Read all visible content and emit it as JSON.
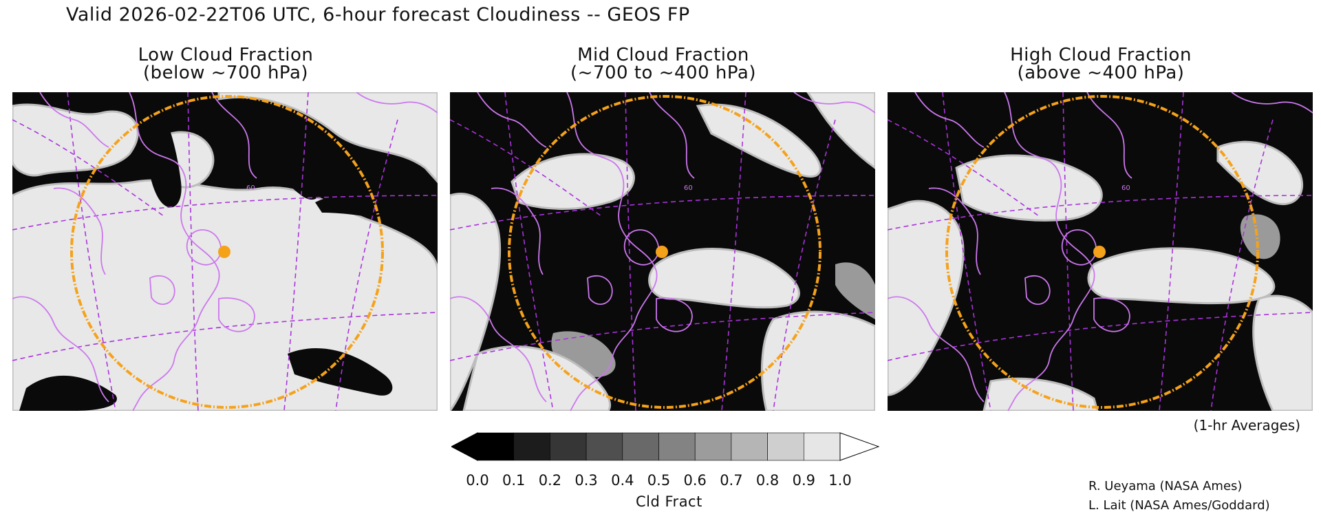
{
  "title": "Valid 2026-02-22T06 UTC, 6-hour forecast Cloudiness -- GEOS FP",
  "panels": [
    {
      "title_line1": "Low Cloud Fraction",
      "title_line2": "(below ~700 hPa)",
      "latitude_label": "60"
    },
    {
      "title_line1": "Mid Cloud Fraction",
      "title_line2": "(~700 to ~400 hPa)",
      "latitude_label": "60"
    },
    {
      "title_line1": "High Cloud Fraction",
      "title_line2": "(above ~400 hPa)",
      "latitude_label": "60"
    }
  ],
  "colorbar": {
    "label": "Cld Fract",
    "ticks": [
      "0.0",
      "0.1",
      "0.2",
      "0.3",
      "0.4",
      "0.5",
      "0.6",
      "0.7",
      "0.8",
      "0.9",
      "1.0"
    ],
    "colors": [
      "#000000",
      "#1c1c1c",
      "#363636",
      "#4f4f4f",
      "#696969",
      "#838383",
      "#9c9c9c",
      "#b5b5b5",
      "#cfcfcf",
      "#e6e6e6"
    ],
    "under_color": "#000000",
    "over_color": "#ffffff"
  },
  "averaging_note": "(1-hr Averages)",
  "credits": [
    "R. Ueyama (NASA Ames)",
    "L. Lait (NASA Ames/Goddard)"
  ],
  "map_style": {
    "coastline_color": "#cc77ee",
    "grid_color": "#aa33dd",
    "ring_color": "#f5a21b",
    "marker_color": "#f5a21b",
    "cloud_high_color": "#e8e8e8",
    "cloud_mid_color": "#9a9a9a",
    "clear_color": "#0a0a0a"
  }
}
